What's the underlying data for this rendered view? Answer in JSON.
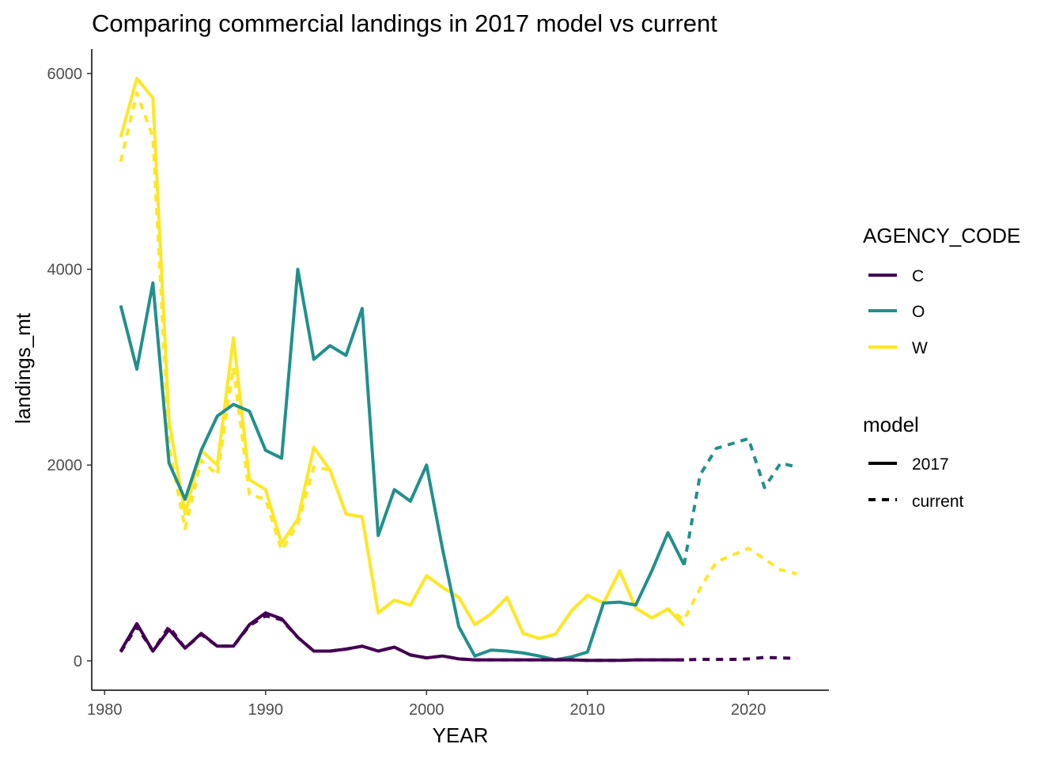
{
  "chart_data": {
    "type": "line",
    "title": "Comparing commercial landings in 2017 model vs current",
    "xlabel": "YEAR",
    "ylabel": "landings_mt",
    "xlim": [
      1979.2,
      2025
    ],
    "ylim": [
      -300,
      6250
    ],
    "x_ticks": [
      1980,
      1990,
      2000,
      2010,
      2020
    ],
    "y_ticks": [
      0,
      2000,
      4000,
      6000
    ],
    "x_tick_labels": [
      "1980",
      "1990",
      "2000",
      "2010",
      "2020"
    ],
    "y_tick_labels": [
      "0",
      "2000",
      "4000",
      "6000"
    ],
    "grid": false,
    "legend_placement": "right",
    "colors": {
      "C": "#440154",
      "O": "#21908C",
      "W": "#FDE725"
    },
    "legends": [
      {
        "title": "AGENCY_CODE",
        "items": [
          {
            "key": "C",
            "label": "C"
          },
          {
            "key": "O",
            "label": "O"
          },
          {
            "key": "W",
            "label": "W"
          }
        ]
      },
      {
        "title": "model",
        "items": [
          {
            "key": "2017",
            "label": "2017"
          },
          {
            "key": "current",
            "label": "current"
          }
        ]
      }
    ],
    "series": [
      {
        "agency": "W",
        "model": "2017",
        "x": [
          1981,
          1982,
          1983,
          1984,
          1985,
          1986,
          1987,
          1988,
          1989,
          1990,
          1991,
          1992,
          1993,
          1994,
          1995,
          1996,
          1997,
          1998,
          1999,
          2000,
          2001,
          2002,
          2003,
          2004,
          2005,
          2006,
          2007,
          2008,
          2009,
          2010,
          2011,
          2012,
          2013,
          2014,
          2015,
          2016
        ],
        "y": [
          5350,
          5950,
          5750,
          2450,
          1500,
          2150,
          2000,
          3300,
          1850,
          1750,
          1200,
          1450,
          2180,
          1950,
          1500,
          1470,
          490,
          620,
          570,
          870,
          750,
          650,
          370,
          480,
          650,
          280,
          230,
          270,
          510,
          670,
          590,
          920,
          540,
          440,
          530,
          360
        ]
      },
      {
        "agency": "W",
        "model": "current",
        "x": [
          1981,
          1982,
          1983,
          1984,
          1985,
          1986,
          1987,
          1988,
          1989,
          1990,
          1991,
          1992,
          1993,
          1994,
          1995,
          1996,
          1997,
          1998,
          1999,
          2000,
          2001,
          2002,
          2003,
          2004,
          2005,
          2006,
          2007,
          2008,
          2009,
          2010,
          2011,
          2012,
          2013,
          2014,
          2015,
          2016,
          2017,
          2018,
          2019,
          2020,
          2021,
          2022,
          2023
        ],
        "y": [
          5100,
          5800,
          5350,
          2200,
          1350,
          2050,
          1900,
          3000,
          1700,
          1650,
          1130,
          1400,
          1980,
          1950,
          1500,
          1470,
          490,
          620,
          570,
          870,
          750,
          650,
          370,
          480,
          650,
          280,
          230,
          270,
          510,
          670,
          590,
          920,
          540,
          440,
          530,
          420,
          740,
          1010,
          1080,
          1150,
          1040,
          930,
          890
        ]
      },
      {
        "agency": "O",
        "model": "2017",
        "x": [
          1981,
          1982,
          1983,
          1984,
          1985,
          1986,
          1987,
          1988,
          1989,
          1990,
          1991,
          1992,
          1993,
          1994,
          1995,
          1996,
          1997,
          1998,
          1999,
          2000,
          2001,
          2002,
          2003,
          2004,
          2005,
          2006,
          2007,
          2008,
          2009,
          2010,
          2011,
          2012,
          2013,
          2014,
          2015,
          2016
        ],
        "y": [
          3630,
          2980,
          3860,
          2020,
          1650,
          2150,
          2500,
          2620,
          2550,
          2150,
          2070,
          4000,
          3080,
          3220,
          3120,
          3600,
          1280,
          1750,
          1630,
          2000,
          1140,
          350,
          50,
          110,
          100,
          80,
          50,
          10,
          40,
          90,
          590,
          600,
          570,
          920,
          1310,
          980
        ]
      },
      {
        "agency": "O",
        "model": "current",
        "x": [
          2016,
          2017,
          2018,
          2019,
          2020,
          2021,
          2022,
          2023
        ],
        "y": [
          980,
          1900,
          2170,
          2220,
          2270,
          1770,
          2020,
          1980
        ]
      },
      {
        "agency": "C",
        "model": "2017",
        "x": [
          1981,
          1982,
          1983,
          1984,
          1985,
          1986,
          1987,
          1988,
          1989,
          1990,
          1991,
          1992,
          1993,
          1994,
          1995,
          1996,
          1997,
          1998,
          1999,
          2000,
          2001,
          2002,
          2003,
          2004,
          2005,
          2006,
          2007,
          2008,
          2009,
          2010,
          2011,
          2012,
          2013,
          2014,
          2015,
          2016
        ],
        "y": [
          100,
          380,
          100,
          320,
          130,
          280,
          150,
          150,
          370,
          490,
          430,
          240,
          100,
          100,
          120,
          150,
          100,
          140,
          60,
          30,
          50,
          20,
          10,
          10,
          10,
          10,
          10,
          10,
          10,
          5,
          5,
          5,
          10,
          10,
          10,
          10
        ]
      },
      {
        "agency": "C",
        "model": "current",
        "x": [
          1981,
          1982,
          1983,
          1984,
          1985,
          1986,
          1987,
          1988,
          1989,
          1990,
          1991,
          1992,
          1993,
          1994,
          1995,
          1996,
          1997,
          1998,
          1999,
          2000,
          2001,
          2002,
          2003,
          2004,
          2005,
          2006,
          2007,
          2008,
          2009,
          2010,
          2011,
          2012,
          2013,
          2014,
          2015,
          2016,
          2017,
          2018,
          2019,
          2020,
          2021,
          2022,
          2023
        ],
        "y": [
          90,
          350,
          100,
          350,
          130,
          270,
          150,
          150,
          360,
          460,
          420,
          240,
          100,
          100,
          120,
          150,
          100,
          140,
          60,
          30,
          50,
          20,
          10,
          10,
          10,
          10,
          10,
          10,
          10,
          5,
          5,
          5,
          10,
          10,
          10,
          10,
          15,
          15,
          15,
          20,
          35,
          30,
          25
        ]
      }
    ]
  }
}
